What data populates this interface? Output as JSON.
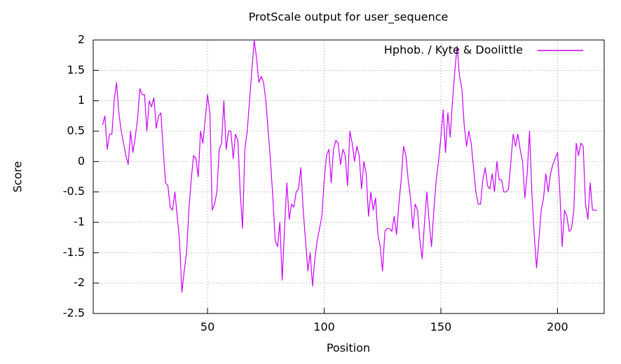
{
  "chart_data": {
    "type": "line",
    "title": "ProtScale output for user_sequence",
    "x_label": "Position",
    "y_label": "Score",
    "xlim": [
      1,
      220
    ],
    "ylim": [
      -2.5,
      2
    ],
    "xticks": [
      50,
      100,
      150,
      200
    ],
    "yticks": [
      -2.5,
      -2,
      -1.5,
      -1,
      -0.5,
      0,
      0.5,
      1,
      1.5,
      2
    ],
    "grid": true,
    "legend": "upper right",
    "x": [
      5,
      6,
      7,
      8,
      9,
      10,
      11,
      12,
      13,
      14,
      15,
      16,
      17,
      18,
      19,
      20,
      21,
      22,
      23,
      24,
      25,
      26,
      27,
      28,
      29,
      30,
      31,
      32,
      33,
      34,
      35,
      36,
      37,
      38,
      39,
      40,
      41,
      42,
      43,
      44,
      45,
      46,
      47,
      48,
      49,
      50,
      51,
      52,
      53,
      54,
      55,
      56,
      57,
      58,
      59,
      60,
      61,
      62,
      63,
      64,
      65,
      66,
      67,
      68,
      69,
      70,
      71,
      72,
      73,
      74,
      75,
      76,
      77,
      78,
      79,
      80,
      81,
      82,
      83,
      84,
      85,
      86,
      87,
      88,
      89,
      90,
      91,
      92,
      93,
      94,
      95,
      96,
      97,
      98,
      99,
      100,
      101,
      102,
      103,
      104,
      105,
      106,
      107,
      108,
      109,
      110,
      111,
      112,
      113,
      114,
      115,
      116,
      117,
      118,
      119,
      120,
      121,
      122,
      123,
      124,
      125,
      126,
      127,
      128,
      129,
      130,
      131,
      132,
      133,
      134,
      135,
      136,
      137,
      138,
      139,
      140,
      141,
      142,
      143,
      144,
      145,
      146,
      147,
      148,
      149,
      150,
      151,
      152,
      153,
      154,
      155,
      156,
      157,
      158,
      159,
      160,
      161,
      162,
      163,
      164,
      165,
      166,
      167,
      168,
      169,
      170,
      171,
      172,
      173,
      174,
      175,
      176,
      177,
      178,
      179,
      180,
      181,
      182,
      183,
      184,
      185,
      186,
      187,
      188,
      189,
      190,
      191,
      192,
      193,
      194,
      195,
      196,
      197,
      198,
      199,
      200,
      201,
      202,
      203,
      204,
      205,
      206,
      207,
      208,
      209,
      210,
      211,
      212,
      213,
      214,
      215,
      216,
      217
    ],
    "series": [
      {
        "name": "Hphob. / Kyte & Doolittle",
        "color": "#cc00ff",
        "values": [
          0.6,
          0.75,
          0.2,
          0.45,
          0.45,
          1.0,
          1.3,
          0.8,
          0.5,
          0.3,
          0.1,
          -0.05,
          0.5,
          0.15,
          0.4,
          0.7,
          1.2,
          1.1,
          1.1,
          0.5,
          1.0,
          0.9,
          1.05,
          0.55,
          0.75,
          0.8,
          0.2,
          -0.35,
          -0.4,
          -0.75,
          -0.8,
          -0.5,
          -0.9,
          -1.3,
          -2.15,
          -1.8,
          -1.5,
          -0.8,
          -0.3,
          0.1,
          0.05,
          -0.25,
          0.5,
          0.3,
          0.7,
          1.1,
          0.8,
          -0.8,
          -0.7,
          -0.5,
          0.2,
          0.3,
          1.0,
          0.2,
          0.5,
          0.5,
          0.05,
          0.45,
          0.35,
          -0.5,
          -1.1,
          0.2,
          0.5,
          1.0,
          1.5,
          2.0,
          1.7,
          1.3,
          1.4,
          1.3,
          1.0,
          0.5,
          0.0,
          -0.6,
          -1.3,
          -1.4,
          -1.0,
          -1.95,
          -1.1,
          -0.35,
          -0.95,
          -0.7,
          -0.75,
          -0.5,
          -0.45,
          -0.1,
          -0.8,
          -1.3,
          -1.8,
          -1.5,
          -2.05,
          -1.6,
          -1.3,
          -1.1,
          -0.9,
          -0.3,
          0.1,
          0.2,
          -0.35,
          0.2,
          0.35,
          0.3,
          -0.05,
          0.2,
          0.1,
          -0.4,
          0.5,
          0.3,
          0.0,
          0.25,
          0.1,
          -0.45,
          0.0,
          -0.2,
          -0.9,
          -0.5,
          -0.8,
          -0.6,
          -1.2,
          -1.4,
          -1.8,
          -1.15,
          -1.1,
          -1.1,
          -1.15,
          -0.9,
          -1.2,
          -0.7,
          -0.3,
          0.25,
          0.1,
          -0.3,
          -0.6,
          -1.1,
          -0.7,
          -0.8,
          -1.3,
          -1.6,
          -1.0,
          -0.5,
          -1.0,
          -1.4,
          -0.8,
          -0.3,
          0.0,
          0.4,
          0.85,
          0.15,
          0.8,
          0.4,
          1.0,
          1.5,
          1.9,
          1.4,
          1.2,
          0.6,
          0.25,
          0.5,
          0.3,
          -0.1,
          -0.5,
          -0.7,
          -0.7,
          -0.3,
          -0.1,
          -0.4,
          -0.45,
          -0.2,
          -0.5,
          0.0,
          -0.3,
          -0.3,
          -0.5,
          -0.5,
          -0.45,
          0.0,
          0.45,
          0.25,
          0.45,
          0.2,
          0.0,
          -0.6,
          -0.2,
          0.5,
          -0.5,
          -1.2,
          -1.75,
          -1.3,
          -0.8,
          -0.6,
          -0.2,
          -0.5,
          -0.2,
          -0.05,
          0.05,
          0.15,
          -0.5,
          -1.4,
          -0.8,
          -0.9,
          -1.15,
          -1.1,
          -0.8,
          0.3,
          0.1,
          0.3,
          0.25,
          -0.7,
          -0.95,
          -0.35,
          -0.8,
          -0.8,
          -0.8
        ]
      }
    ]
  }
}
